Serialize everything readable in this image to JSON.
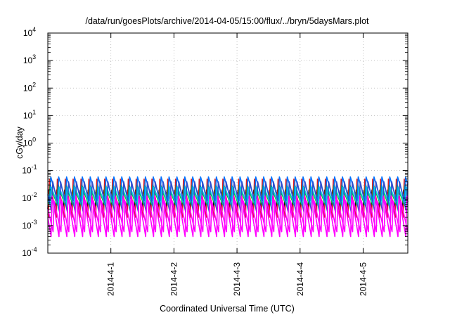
{
  "chart_data": {
    "type": "line",
    "title": "/data/run/goesPlots/archive/2014-04-05/15:00/flux/../bryn/5daysMars.plot",
    "xlabel": "Coordinated Universal Time (UTC)",
    "ylabel": "cGy/day",
    "y_scale": "log",
    "ylim": [
      0.0001,
      10000
    ],
    "y_tick_exponents": [
      "-4",
      "-3",
      "-2",
      "-1",
      "0",
      "1",
      "2",
      "3",
      "4"
    ],
    "y_tick_base": "10",
    "xlim": [
      "2014-03-31T00:00",
      "2014-04-05T17:00"
    ],
    "x_ticks": [
      {
        "label": "2014-4-1",
        "date": "2014-04-01T00:00"
      },
      {
        "label": "2014-4-2",
        "date": "2014-04-02T00:00"
      },
      {
        "label": "2014-4-3",
        "date": "2014-04-03T00:00"
      },
      {
        "label": "2014-4-4",
        "date": "2014-04-04T00:00"
      },
      {
        "label": "2014-4-5",
        "date": "2014-04-05T00:00"
      }
    ],
    "grid": true,
    "legend": "none",
    "cycle_hours": 3,
    "series": [
      {
        "color": "#000000",
        "peak": 0.02,
        "trough": 0.004,
        "phase_hours": 0.0
      },
      {
        "color": "#e02020",
        "peak": 0.05,
        "trough": 0.002,
        "phase_hours": 0.25
      },
      {
        "color": "#00b000",
        "peak": 0.03,
        "trough": 0.006,
        "phase_hours": 0.5
      },
      {
        "color": "#0070ff",
        "peak": 0.06,
        "trough": 0.008,
        "phase_hours": 0.75
      },
      {
        "color": "#00d8d8",
        "peak": 0.025,
        "trough": 0.005,
        "phase_hours": 1.0
      },
      {
        "color": "#3050d0",
        "peak": 0.04,
        "trough": 0.003,
        "phase_hours": 1.5
      },
      {
        "color": "#ff00ff",
        "peak": 0.012,
        "trough": 0.0004,
        "phase_hours": 1.25
      },
      {
        "color": "#ff00ff",
        "peak": 0.008,
        "trough": 0.0006,
        "phase_hours": 2.0
      }
    ]
  }
}
